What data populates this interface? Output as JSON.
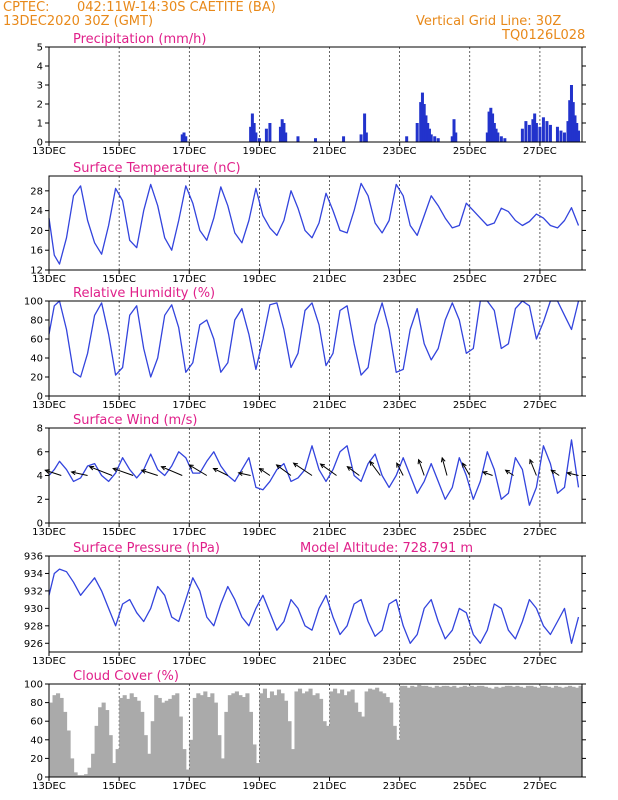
{
  "header": {
    "source": "CPTEC:",
    "location": "042:11W-14:30S   CAETITE (BA)",
    "run_date": "13DEC2020 30Z (GMT)",
    "grid_note": "Vertical Grid Line: 30Z",
    "model_code": "TQ0126L028"
  },
  "colors": {
    "header": "#e8891a",
    "titles": "#e0208a",
    "line": "#3344dd",
    "bar": "#2233cc",
    "cloud": "#aaaaaa",
    "arrow": "#000000"
  },
  "chart_data": [
    {
      "type": "bar",
      "title": "Precipitation (mm/h)",
      "x_range": [
        13,
        28.2
      ],
      "ylim": [
        0,
        5
      ],
      "yticks": [
        "0",
        "1",
        "2",
        "3",
        "4",
        "5"
      ],
      "xticks": [
        "13DEC",
        "15DEC",
        "17DEC",
        "19DEC",
        "21DEC",
        "23DEC",
        "25DEC",
        "27DEC"
      ],
      "x": [
        16.8,
        16.85,
        16.9,
        18.75,
        18.8,
        18.85,
        18.9,
        19.0,
        19.2,
        19.3,
        19.6,
        19.65,
        19.7,
        19.75,
        20.1,
        20.6,
        21.4,
        21.9,
        22.0,
        22.05,
        23.2,
        23.5,
        23.6,
        23.65,
        23.7,
        23.75,
        23.8,
        23.85,
        23.9,
        24.0,
        24.1,
        24.5,
        24.55,
        24.6,
        25.5,
        25.55,
        25.6,
        25.65,
        25.7,
        25.75,
        25.8,
        25.9,
        26.0,
        26.5,
        26.6,
        26.7,
        26.8,
        26.85,
        26.9,
        27.0,
        27.1,
        27.2,
        27.3,
        27.5,
        27.6,
        27.7,
        27.8,
        27.85,
        27.9,
        27.95,
        28.0,
        28.05,
        28.1
      ],
      "values": [
        0.4,
        0.5,
        0.3,
        0.8,
        1.5,
        1.0,
        0.5,
        0.2,
        0.7,
        1.0,
        0.8,
        1.2,
        1.0,
        0.5,
        0.3,
        0.2,
        0.3,
        0.4,
        1.5,
        0.5,
        0.3,
        1.0,
        2.1,
        2.6,
        2.0,
        1.4,
        1.0,
        0.7,
        0.4,
        0.3,
        0.2,
        0.3,
        1.2,
        0.5,
        0.5,
        1.6,
        1.8,
        1.5,
        1.0,
        0.7,
        0.5,
        0.3,
        0.2,
        0.7,
        1.1,
        0.9,
        1.2,
        1.5,
        1.0,
        0.8,
        1.3,
        1.1,
        0.9,
        0.8,
        0.6,
        0.5,
        1.1,
        2.2,
        3.0,
        2.1,
        1.4,
        1.0,
        0.6
      ]
    },
    {
      "type": "line",
      "title": "Surface Temperature (nC)",
      "x_range": [
        13,
        28.2
      ],
      "ylim": [
        12,
        31
      ],
      "yticks": [
        "12",
        "16",
        "20",
        "24",
        "28"
      ],
      "ytick_values": [
        12,
        16,
        20,
        24,
        28
      ],
      "xticks": [
        "13DEC",
        "15DEC",
        "17DEC",
        "19DEC",
        "21DEC",
        "23DEC",
        "25DEC",
        "27DEC"
      ],
      "x": [
        13.0,
        13.15,
        13.3,
        13.5,
        13.7,
        13.9,
        14.1,
        14.3,
        14.5,
        14.7,
        14.9,
        15.1,
        15.3,
        15.5,
        15.7,
        15.9,
        16.1,
        16.3,
        16.5,
        16.7,
        16.9,
        17.1,
        17.3,
        17.5,
        17.7,
        17.9,
        18.1,
        18.3,
        18.5,
        18.7,
        18.9,
        19.1,
        19.3,
        19.5,
        19.7,
        19.9,
        20.1,
        20.3,
        20.5,
        20.7,
        20.9,
        21.1,
        21.3,
        21.5,
        21.7,
        21.9,
        22.1,
        22.3,
        22.5,
        22.7,
        22.9,
        23.1,
        23.3,
        23.5,
        23.7,
        23.9,
        24.1,
        24.3,
        24.5,
        24.7,
        24.9,
        25.1,
        25.3,
        25.5,
        25.7,
        25.9,
        26.1,
        26.3,
        26.5,
        26.7,
        26.9,
        27.1,
        27.3,
        27.5,
        27.7,
        27.9,
        28.1
      ],
      "values": [
        22.5,
        15.0,
        13.2,
        18.5,
        27.0,
        29.0,
        22.0,
        17.5,
        15.2,
        21.0,
        28.5,
        26.0,
        18.0,
        16.5,
        24.0,
        29.3,
        25.0,
        18.5,
        16.0,
        22.0,
        29.0,
        25.5,
        20.0,
        18.0,
        22.5,
        28.8,
        25.0,
        19.5,
        17.5,
        22.0,
        28.5,
        23.0,
        20.5,
        19.0,
        22.0,
        28.0,
        24.5,
        20.0,
        18.5,
        21.5,
        27.5,
        24.0,
        20.0,
        19.5,
        24.0,
        29.5,
        27.0,
        21.5,
        19.5,
        22.0,
        29.3,
        27.0,
        21.0,
        19.0,
        23.0,
        27.0,
        25.0,
        22.5,
        20.5,
        21.0,
        25.5,
        24.0,
        22.5,
        21.0,
        21.5,
        24.5,
        23.8,
        22.0,
        21.0,
        21.8,
        23.3,
        22.5,
        21.0,
        20.5,
        22.0,
        24.6,
        21.0
      ]
    },
    {
      "type": "line",
      "title": "Relative Humidity (%)",
      "x_range": [
        13,
        28.2
      ],
      "ylim": [
        0,
        100
      ],
      "yticks": [
        "0",
        "20",
        "40",
        "60",
        "80",
        "100"
      ],
      "ytick_values": [
        0,
        20,
        40,
        60,
        80,
        100
      ],
      "xticks": [
        "13DEC",
        "15DEC",
        "17DEC",
        "19DEC",
        "21DEC",
        "23DEC",
        "25DEC",
        "27DEC"
      ],
      "x": [
        13.0,
        13.15,
        13.3,
        13.5,
        13.7,
        13.9,
        14.1,
        14.3,
        14.5,
        14.7,
        14.9,
        15.1,
        15.3,
        15.5,
        15.7,
        15.9,
        16.1,
        16.3,
        16.5,
        16.7,
        16.9,
        17.1,
        17.3,
        17.5,
        17.7,
        17.9,
        18.1,
        18.3,
        18.5,
        18.7,
        18.9,
        19.1,
        19.3,
        19.5,
        19.7,
        19.9,
        20.1,
        20.3,
        20.5,
        20.7,
        20.9,
        21.1,
        21.3,
        21.5,
        21.7,
        21.9,
        22.1,
        22.3,
        22.5,
        22.7,
        22.9,
        23.1,
        23.3,
        23.5,
        23.7,
        23.9,
        24.1,
        24.3,
        24.5,
        24.7,
        24.9,
        25.1,
        25.3,
        25.5,
        25.7,
        25.9,
        26.1,
        26.3,
        26.5,
        26.7,
        26.9,
        27.1,
        27.3,
        27.5,
        27.7,
        27.9,
        28.1
      ],
      "values": [
        65,
        95,
        100,
        70,
        25,
        20,
        45,
        85,
        98,
        65,
        22,
        30,
        85,
        95,
        50,
        20,
        40,
        85,
        96,
        72,
        25,
        35,
        75,
        80,
        60,
        25,
        35,
        80,
        92,
        65,
        28,
        60,
        96,
        98,
        70,
        30,
        45,
        90,
        98,
        75,
        32,
        45,
        90,
        95,
        55,
        22,
        30,
        75,
        98,
        70,
        25,
        28,
        70,
        92,
        55,
        38,
        50,
        80,
        98,
        80,
        45,
        50,
        100,
        100,
        90,
        50,
        55,
        92,
        100,
        95,
        60,
        78,
        100,
        100,
        85,
        70,
        100
      ]
    },
    {
      "type": "line",
      "title": "Surface Wind (m/s)",
      "x_range": [
        13,
        28.2
      ],
      "ylim": [
        0,
        8
      ],
      "yticks": [
        "0",
        "2",
        "4",
        "6",
        "8"
      ],
      "ytick_values": [
        0,
        2,
        4,
        6,
        8
      ],
      "xticks": [
        "13DEC",
        "15DEC",
        "17DEC",
        "19DEC",
        "21DEC",
        "23DEC",
        "25DEC",
        "27DEC"
      ],
      "x": [
        13.0,
        13.15,
        13.3,
        13.5,
        13.7,
        13.9,
        14.1,
        14.3,
        14.5,
        14.7,
        14.9,
        15.1,
        15.3,
        15.5,
        15.7,
        15.9,
        16.1,
        16.3,
        16.5,
        16.7,
        16.9,
        17.1,
        17.3,
        17.5,
        17.7,
        17.9,
        18.1,
        18.3,
        18.5,
        18.7,
        18.9,
        19.1,
        19.3,
        19.5,
        19.7,
        19.9,
        20.1,
        20.3,
        20.5,
        20.7,
        20.9,
        21.1,
        21.3,
        21.5,
        21.7,
        21.9,
        22.1,
        22.3,
        22.5,
        22.7,
        22.9,
        23.1,
        23.3,
        23.5,
        23.7,
        23.9,
        24.1,
        24.3,
        24.5,
        24.7,
        24.9,
        25.1,
        25.3,
        25.5,
        25.7,
        25.9,
        26.1,
        26.3,
        26.5,
        26.7,
        26.9,
        27.1,
        27.3,
        27.5,
        27.7,
        27.9,
        28.1
      ],
      "values": [
        4.0,
        4.5,
        5.2,
        4.5,
        3.5,
        3.8,
        4.8,
        5.0,
        4.0,
        3.5,
        4.2,
        5.5,
        4.5,
        3.8,
        4.5,
        5.8,
        4.5,
        4.0,
        4.8,
        6.0,
        5.5,
        4.2,
        4.2,
        5.2,
        6.0,
        4.8,
        4.0,
        3.5,
        4.5,
        5.5,
        3.0,
        2.8,
        3.5,
        4.5,
        5.0,
        3.5,
        3.8,
        4.5,
        6.5,
        4.5,
        3.5,
        4.5,
        6.0,
        6.5,
        4.0,
        3.5,
        5.0,
        5.8,
        4.0,
        3.0,
        4.0,
        5.5,
        4.0,
        2.5,
        3.5,
        5.0,
        3.5,
        2.0,
        3.0,
        5.5,
        4.0,
        2.0,
        3.5,
        6.0,
        4.5,
        2.0,
        2.5,
        5.5,
        4.5,
        1.5,
        3.0,
        6.5,
        5.0,
        2.5,
        3.0,
        7.0,
        3.0
      ],
      "arrows": {
        "x": [
          13.35,
          14.1,
          14.8,
          15.4,
          16.1,
          16.8,
          17.5,
          18.1,
          18.75,
          19.3,
          19.9,
          20.5,
          21.2,
          21.85,
          22.45,
          23.1,
          23.7,
          24.35,
          25.0,
          25.65,
          26.25,
          26.9,
          27.55,
          28.1
        ],
        "u": [
          2.0,
          2.0,
          2.8,
          2.5,
          2.0,
          2.6,
          2.2,
          1.8,
          1.5,
          1.3,
          1.8,
          2.3,
          2.0,
          1.5,
          1.3,
          0.8,
          0.7,
          0.6,
          0.9,
          1.2,
          1.0,
          0.8,
          1.0,
          1.4
        ],
        "v": [
          -0.6,
          -0.4,
          -1.0,
          -0.8,
          -0.6,
          -1.0,
          -1.2,
          -0.8,
          -0.3,
          -0.8,
          -1.2,
          -1.4,
          -1.3,
          -1.0,
          -1.6,
          -1.4,
          -1.8,
          -2.0,
          -1.4,
          -0.4,
          -0.6,
          -1.8,
          -0.6,
          -0.3
        ]
      }
    },
    {
      "type": "line",
      "title": "Surface Pressure (hPa)",
      "annotation": "Model Altitude: 728.791  m",
      "x_range": [
        13,
        28.2
      ],
      "ylim": [
        925,
        936
      ],
      "yticks": [
        "926",
        "928",
        "930",
        "932",
        "934",
        "936"
      ],
      "ytick_values": [
        926,
        928,
        930,
        932,
        934,
        936
      ],
      "xticks": [
        "13DEC",
        "15DEC",
        "17DEC",
        "19DEC",
        "21DEC",
        "23DEC",
        "25DEC",
        "27DEC"
      ],
      "x": [
        13.0,
        13.15,
        13.3,
        13.5,
        13.7,
        13.9,
        14.1,
        14.3,
        14.5,
        14.7,
        14.9,
        15.1,
        15.3,
        15.5,
        15.7,
        15.9,
        16.1,
        16.3,
        16.5,
        16.7,
        16.9,
        17.1,
        17.3,
        17.5,
        17.7,
        17.9,
        18.1,
        18.3,
        18.5,
        18.7,
        18.9,
        19.1,
        19.3,
        19.5,
        19.7,
        19.9,
        20.1,
        20.3,
        20.5,
        20.7,
        20.9,
        21.1,
        21.3,
        21.5,
        21.7,
        21.9,
        22.1,
        22.3,
        22.5,
        22.7,
        22.9,
        23.1,
        23.3,
        23.5,
        23.7,
        23.9,
        24.1,
        24.3,
        24.5,
        24.7,
        24.9,
        25.1,
        25.3,
        25.5,
        25.7,
        25.9,
        26.1,
        26.3,
        26.5,
        26.7,
        26.9,
        27.1,
        27.3,
        27.5,
        27.7,
        27.9,
        28.1
      ],
      "values": [
        931.5,
        934.0,
        934.5,
        934.2,
        933.0,
        931.5,
        932.5,
        933.5,
        932.0,
        930.0,
        928.0,
        930.5,
        931.0,
        929.5,
        928.5,
        930.0,
        932.5,
        931.5,
        929.0,
        928.5,
        931.0,
        933.5,
        932.0,
        929.0,
        928.0,
        930.5,
        932.5,
        931.0,
        929.0,
        928.0,
        930.0,
        931.5,
        929.5,
        927.5,
        928.5,
        931.0,
        930.0,
        928.0,
        927.5,
        930.0,
        931.5,
        929.0,
        927.0,
        928.0,
        930.5,
        931.0,
        928.5,
        926.8,
        927.5,
        930.5,
        931.0,
        928.0,
        926.0,
        927.0,
        930.0,
        931.0,
        928.5,
        926.5,
        927.5,
        930.0,
        929.5,
        927.0,
        926.0,
        927.5,
        930.5,
        930.0,
        927.5,
        926.5,
        928.5,
        931.0,
        930.0,
        928.0,
        927.0,
        928.5,
        930.0,
        926.0,
        929.0
      ]
    },
    {
      "type": "bar",
      "title": "Cloud Cover (%)",
      "x_range": [
        13,
        28.2
      ],
      "ylim": [
        0,
        100
      ],
      "yticks": [
        "0",
        "20",
        "40",
        "60",
        "80",
        "100"
      ],
      "ytick_values": [
        0,
        20,
        40,
        60,
        80,
        100
      ],
      "xticks": [
        "13DEC",
        "15DEC",
        "17DEC",
        "19DEC",
        "21DEC",
        "23DEC",
        "25DEC",
        "27DEC"
      ],
      "x": [
        13.0,
        13.1,
        13.2,
        13.3,
        13.4,
        13.5,
        13.6,
        13.7,
        13.8,
        13.9,
        14.0,
        14.1,
        14.2,
        14.3,
        14.4,
        14.5,
        14.6,
        14.7,
        14.8,
        14.9,
        15.0,
        15.1,
        15.2,
        15.3,
        15.4,
        15.5,
        15.6,
        15.7,
        15.8,
        15.9,
        16.0,
        16.1,
        16.2,
        16.3,
        16.4,
        16.5,
        16.6,
        16.7,
        16.8,
        16.9,
        17.0,
        17.1,
        17.2,
        17.3,
        17.4,
        17.5,
        17.6,
        17.7,
        17.8,
        17.9,
        18.0,
        18.1,
        18.2,
        18.3,
        18.4,
        18.5,
        18.6,
        18.7,
        18.8,
        18.9,
        19.0,
        19.1,
        19.2,
        19.3,
        19.4,
        19.5,
        19.6,
        19.7,
        19.8,
        19.9,
        20.0,
        20.1,
        20.2,
        20.3,
        20.4,
        20.5,
        20.6,
        20.7,
        20.8,
        20.9,
        21.0,
        21.1,
        21.2,
        21.3,
        21.4,
        21.5,
        21.6,
        21.7,
        21.8,
        21.9,
        22.0,
        22.1,
        22.2,
        22.3,
        22.4,
        22.5,
        22.6,
        22.7,
        22.8,
        22.9,
        23.0,
        23.1,
        23.2,
        23.3,
        23.4,
        23.5,
        23.6,
        23.7,
        23.8,
        23.9,
        24.0,
        24.1,
        24.2,
        24.3,
        24.4,
        24.5,
        24.6,
        24.7,
        24.8,
        24.9,
        25.0,
        25.1,
        25.2,
        25.3,
        25.4,
        25.5,
        25.6,
        25.7,
        25.8,
        25.9,
        26.0,
        26.1,
        26.2,
        26.3,
        26.4,
        26.5,
        26.6,
        26.7,
        26.8,
        26.9,
        27.0,
        27.1,
        27.2,
        27.3,
        27.4,
        27.5,
        27.6,
        27.7,
        27.8,
        27.9,
        28.0,
        28.1
      ],
      "values": [
        80,
        88,
        90,
        85,
        70,
        50,
        20,
        5,
        2,
        2,
        3,
        10,
        25,
        55,
        75,
        80,
        72,
        45,
        15,
        30,
        85,
        88,
        84,
        90,
        86,
        82,
        70,
        45,
        25,
        60,
        88,
        85,
        80,
        82,
        84,
        88,
        90,
        65,
        30,
        8,
        40,
        85,
        90,
        88,
        92,
        86,
        90,
        80,
        45,
        20,
        70,
        88,
        90,
        92,
        88,
        86,
        90,
        70,
        35,
        15,
        90,
        95,
        85,
        92,
        88,
        94,
        90,
        82,
        60,
        30,
        92,
        95,
        90,
        92,
        95,
        88,
        90,
        84,
        60,
        55,
        92,
        95,
        90,
        94,
        88,
        92,
        94,
        80,
        70,
        65,
        92,
        95,
        94,
        96,
        92,
        90,
        86,
        80,
        55,
        40,
        98,
        98,
        96,
        98,
        97,
        99,
        98,
        98,
        97,
        96,
        98,
        97,
        98,
        98,
        97,
        98,
        96,
        97,
        98,
        97,
        98,
        97,
        98,
        98,
        97,
        96,
        95,
        97,
        96,
        97,
        98,
        98,
        97,
        98,
        97,
        96,
        98,
        98,
        97,
        96,
        98,
        98,
        97,
        96,
        98,
        97,
        96,
        97,
        98,
        97,
        96,
        98
      ]
    }
  ]
}
